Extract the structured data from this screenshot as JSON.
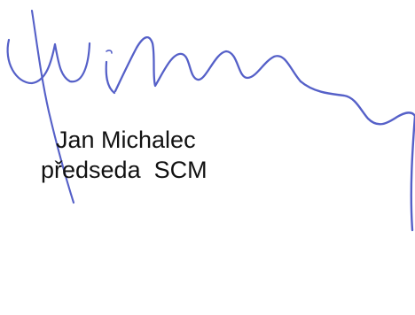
{
  "signature_block": {
    "name": "Jan Michalec",
    "role": "předseda  SCM",
    "signature_text": "Michalec",
    "ink_color": "#5560c8",
    "text_color": "#111111"
  }
}
